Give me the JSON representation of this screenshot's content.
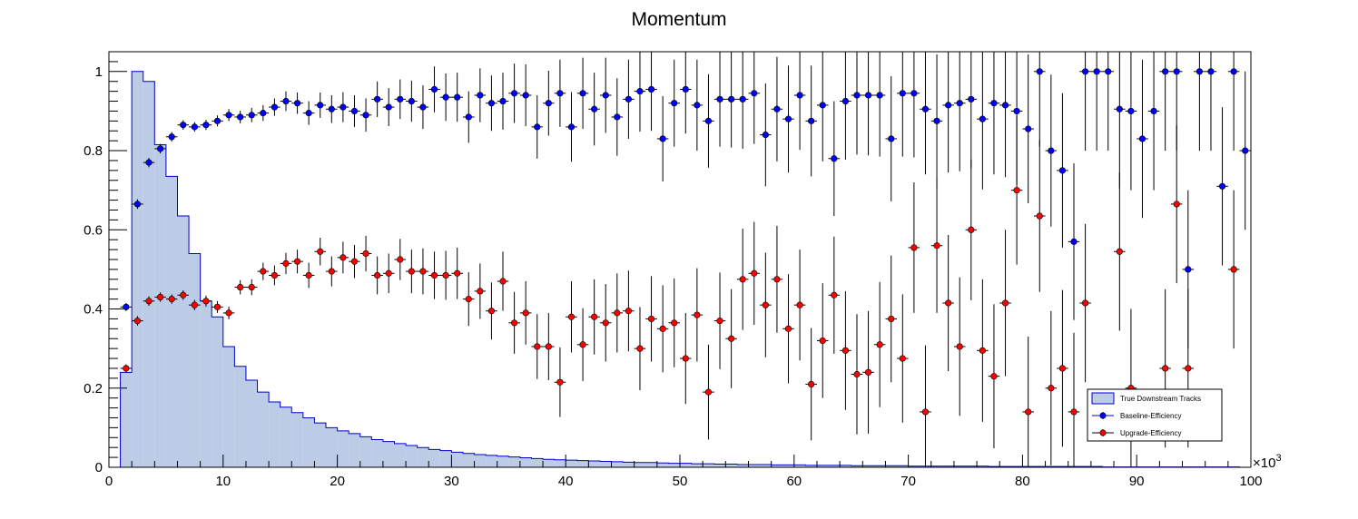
{
  "chart_data": {
    "type": "scatter",
    "title": "Momentum",
    "xlabel": "",
    "ylabel": "",
    "x_exponent_label": "×10",
    "x_exponent_power": "3",
    "xlim": [
      0,
      100
    ],
    "ylim": [
      0,
      1.05
    ],
    "x_ticks": [
      "0",
      "10",
      "20",
      "30",
      "40",
      "50",
      "60",
      "70",
      "80",
      "90",
      "100"
    ],
    "y_ticks": [
      "0",
      "0.2",
      "0.4",
      "0.6",
      "0.8",
      "1"
    ],
    "legend_position": "bottom-right",
    "colors": {
      "histogram_fill": "#bccbe6",
      "histogram_line": "#0000cc",
      "baseline": "#0000ff",
      "upgrade": "#ff0000",
      "errorbar": "#000000"
    },
    "histogram": {
      "name": "True Downstream Tracks",
      "x_start": 1,
      "bin_width": 1,
      "values": [
        0.24,
        1.0,
        0.975,
        0.815,
        0.735,
        0.635,
        0.54,
        0.42,
        0.38,
        0.305,
        0.255,
        0.22,
        0.19,
        0.165,
        0.152,
        0.138,
        0.125,
        0.112,
        0.1,
        0.092,
        0.085,
        0.077,
        0.07,
        0.065,
        0.06,
        0.055,
        0.05,
        0.045,
        0.042,
        0.038,
        0.035,
        0.032,
        0.03,
        0.028,
        0.026,
        0.024,
        0.022,
        0.02,
        0.019,
        0.018,
        0.017,
        0.016,
        0.015,
        0.014,
        0.013,
        0.012,
        0.012,
        0.011,
        0.01,
        0.01,
        0.009,
        0.009,
        0.008,
        0.008,
        0.007,
        0.007,
        0.007,
        0.006,
        0.006,
        0.006,
        0.005,
        0.005,
        0.005,
        0.005,
        0.004,
        0.004,
        0.004,
        0.004,
        0.004,
        0.003,
        0.003,
        0.003,
        0.003,
        0.003,
        0.003,
        0.003,
        0.002,
        0.002,
        0.002,
        0.002,
        0.002,
        0.002,
        0.002,
        0.002,
        0.002,
        0.002,
        0.001,
        0.001,
        0.001,
        0.001,
        0.001,
        0.001,
        0.001,
        0.001,
        0.001,
        0.001,
        0.001,
        0.001
      ]
    },
    "series": [
      {
        "name": "Baseline-Efficiency",
        "x": [
          1.5,
          2.5,
          3.5,
          4.5,
          5.5,
          6.5,
          7.5,
          8.5,
          9.5,
          10.5,
          11.5,
          12.5,
          13.5,
          14.5,
          15.5,
          16.5,
          17.5,
          18.5,
          19.5,
          20.5,
          21.5,
          22.5,
          23.5,
          24.5,
          25.5,
          26.5,
          27.5,
          28.5,
          29.5,
          30.5,
          31.5,
          32.5,
          33.5,
          34.5,
          35.5,
          36.5,
          37.5,
          38.5,
          39.5,
          40.5,
          41.5,
          42.5,
          43.5,
          44.5,
          45.5,
          46.5,
          47.5,
          48.5,
          49.5,
          50.5,
          51.5,
          52.5,
          53.5,
          54.5,
          55.5,
          56.5,
          57.5,
          58.5,
          59.5,
          60.5,
          61.5,
          62.5,
          63.5,
          64.5,
          65.5,
          66.5,
          67.5,
          68.5,
          69.5,
          70.5,
          71.5,
          72.5,
          73.5,
          74.5,
          75.5,
          76.5,
          77.5,
          78.5,
          79.5,
          80.5,
          81.5,
          82.5,
          83.5,
          84.5,
          85.5,
          86.5,
          87.5,
          88.5,
          89.5,
          90.5,
          91.5,
          92.5,
          93.5,
          94.5,
          95.5,
          96.5,
          97.5,
          98.5,
          99.5
        ],
        "y": [
          0.405,
          0.665,
          0.77,
          0.805,
          0.835,
          0.865,
          0.86,
          0.865,
          0.875,
          0.89,
          0.885,
          0.89,
          0.895,
          0.91,
          0.925,
          0.92,
          0.895,
          0.915,
          0.905,
          0.91,
          0.9,
          0.89,
          0.93,
          0.91,
          0.93,
          0.925,
          0.91,
          0.955,
          0.935,
          0.935,
          0.885,
          0.94,
          0.92,
          0.925,
          0.945,
          0.94,
          0.86,
          0.92,
          0.945,
          0.86,
          0.945,
          0.905,
          0.94,
          0.885,
          0.93,
          0.95,
          0.955,
          0.83,
          0.92,
          0.955,
          0.915,
          0.875,
          0.93,
          0.93,
          0.93,
          0.945,
          0.84,
          0.905,
          0.88,
          0.94,
          0.875,
          0.915,
          0.78,
          0.925,
          0.94,
          0.94,
          0.94,
          0.83,
          0.945,
          0.945,
          0.905,
          0.875,
          0.915,
          0.92,
          0.93,
          0.88,
          0.92,
          0.915,
          0.9,
          0.855,
          1.0,
          0.8,
          0.75,
          0.57,
          1.0,
          1.0,
          1.0,
          0.905,
          0.9,
          0.83,
          0.9,
          1.0,
          1.0,
          0.5,
          1.0,
          1.0,
          0.71,
          1.0,
          0.8
        ],
        "err_up": [
          0.01,
          0.012,
          0.012,
          0.012,
          0.012,
          0.012,
          0.012,
          0.013,
          0.014,
          0.015,
          0.016,
          0.018,
          0.02,
          0.022,
          0.025,
          0.027,
          0.03,
          0.032,
          0.035,
          0.038,
          0.04,
          0.042,
          0.045,
          0.048,
          0.05,
          0.052,
          0.055,
          0.058,
          0.06,
          0.062,
          0.065,
          0.068,
          0.07,
          0.072,
          0.075,
          0.078,
          0.08,
          0.082,
          0.085,
          0.088,
          0.09,
          0.092,
          0.095,
          0.098,
          0.1,
          0.102,
          0.105,
          0.108,
          0.11,
          0.112,
          0.115,
          0.118,
          0.12,
          0.122,
          0.125,
          0.128,
          0.13,
          0.132,
          0.135,
          0.138,
          0.14,
          0.142,
          0.145,
          0.148,
          0.15,
          0.152,
          0.155,
          0.158,
          0.16,
          0.162,
          0.165,
          0.168,
          0.17,
          0.172,
          0.175,
          0.178,
          0.18,
          0.182,
          0.185,
          0.188,
          0.19,
          0.192,
          0.195,
          0.198,
          0.2,
          0.2,
          0.2,
          0.2,
          0.2,
          0.2,
          0.2,
          0.2,
          0.2,
          0.2,
          0.2,
          0.2,
          0.2,
          0.2,
          0.2
        ],
        "err_down": [
          0.01,
          0.012,
          0.012,
          0.012,
          0.012,
          0.012,
          0.012,
          0.013,
          0.014,
          0.015,
          0.016,
          0.018,
          0.02,
          0.022,
          0.025,
          0.027,
          0.03,
          0.032,
          0.035,
          0.038,
          0.04,
          0.042,
          0.045,
          0.048,
          0.05,
          0.052,
          0.055,
          0.058,
          0.06,
          0.062,
          0.065,
          0.068,
          0.07,
          0.072,
          0.075,
          0.078,
          0.08,
          0.082,
          0.085,
          0.088,
          0.09,
          0.092,
          0.095,
          0.098,
          0.1,
          0.102,
          0.105,
          0.108,
          0.11,
          0.112,
          0.115,
          0.118,
          0.12,
          0.122,
          0.125,
          0.128,
          0.13,
          0.132,
          0.135,
          0.138,
          0.14,
          0.142,
          0.145,
          0.148,
          0.15,
          0.152,
          0.155,
          0.158,
          0.16,
          0.162,
          0.165,
          0.168,
          0.17,
          0.172,
          0.175,
          0.178,
          0.18,
          0.182,
          0.185,
          0.188,
          0.19,
          0.192,
          0.195,
          0.198,
          0.2,
          0.2,
          0.2,
          0.2,
          0.2,
          0.2,
          0.2,
          0.2,
          0.2,
          0.2,
          0.2,
          0.2,
          0.2,
          0.2,
          0.2
        ]
      },
      {
        "name": "Upgrade-Efficiency",
        "x": [
          1.5,
          2.5,
          3.5,
          4.5,
          5.5,
          6.5,
          7.5,
          8.5,
          9.5,
          10.5,
          11.5,
          12.5,
          13.5,
          14.5,
          15.5,
          16.5,
          17.5,
          18.5,
          19.5,
          20.5,
          21.5,
          22.5,
          23.5,
          24.5,
          25.5,
          26.5,
          27.5,
          28.5,
          29.5,
          30.5,
          31.5,
          32.5,
          33.5,
          34.5,
          35.5,
          36.5,
          37.5,
          38.5,
          39.5,
          40.5,
          41.5,
          42.5,
          43.5,
          44.5,
          45.5,
          46.5,
          47.5,
          48.5,
          49.5,
          50.5,
          51.5,
          52.5,
          53.5,
          54.5,
          55.5,
          56.5,
          57.5,
          58.5,
          59.5,
          60.5,
          61.5,
          62.5,
          63.5,
          64.5,
          65.5,
          66.5,
          67.5,
          68.5,
          69.5,
          70.5,
          71.5,
          72.5,
          73.5,
          74.5,
          75.5,
          76.5,
          77.5,
          78.5,
          79.5,
          80.5,
          81.5,
          82.5,
          83.5,
          84.5,
          85.5,
          88.5,
          89.5,
          92.5,
          93.5,
          94.5,
          98.5
        ],
        "y": [
          0.25,
          0.37,
          0.42,
          0.43,
          0.425,
          0.435,
          0.41,
          0.42,
          0.405,
          0.39,
          0.455,
          0.455,
          0.495,
          0.485,
          0.515,
          0.52,
          0.485,
          0.545,
          0.495,
          0.53,
          0.52,
          0.54,
          0.485,
          0.49,
          0.525,
          0.495,
          0.495,
          0.485,
          0.485,
          0.49,
          0.425,
          0.445,
          0.395,
          0.47,
          0.365,
          0.39,
          0.305,
          0.305,
          0.215,
          0.38,
          0.31,
          0.38,
          0.365,
          0.39,
          0.395,
          0.3,
          0.375,
          0.35,
          0.365,
          0.275,
          0.385,
          0.19,
          0.37,
          0.325,
          0.475,
          0.49,
          0.41,
          0.475,
          0.35,
          0.41,
          0.21,
          0.32,
          0.435,
          0.295,
          0.235,
          0.24,
          0.31,
          0.375,
          0.275,
          0.555,
          0.14,
          0.56,
          0.415,
          0.305,
          0.6,
          0.295,
          0.23,
          0.415,
          0.7,
          0.14,
          0.635,
          0.2,
          0.25,
          0.14,
          0.415,
          0.545,
          0.2,
          0.25,
          0.665,
          0.25,
          0.5
        ],
        "err_up": [
          0.01,
          0.012,
          0.012,
          0.012,
          0.012,
          0.012,
          0.013,
          0.014,
          0.015,
          0.016,
          0.018,
          0.02,
          0.022,
          0.025,
          0.027,
          0.03,
          0.032,
          0.035,
          0.038,
          0.04,
          0.042,
          0.045,
          0.048,
          0.05,
          0.052,
          0.055,
          0.058,
          0.06,
          0.062,
          0.065,
          0.068,
          0.07,
          0.072,
          0.075,
          0.078,
          0.08,
          0.082,
          0.085,
          0.088,
          0.09,
          0.092,
          0.095,
          0.098,
          0.1,
          0.102,
          0.105,
          0.108,
          0.11,
          0.112,
          0.115,
          0.118,
          0.12,
          0.122,
          0.125,
          0.128,
          0.13,
          0.132,
          0.135,
          0.138,
          0.14,
          0.142,
          0.145,
          0.148,
          0.15,
          0.152,
          0.155,
          0.158,
          0.16,
          0.162,
          0.165,
          0.168,
          0.17,
          0.172,
          0.175,
          0.178,
          0.18,
          0.182,
          0.185,
          0.188,
          0.19,
          0.192,
          0.195,
          0.198,
          0.2,
          0.2,
          0.2,
          0.2,
          0.2,
          0.2,
          0.2,
          0.2
        ],
        "err_down": [
          0.01,
          0.012,
          0.012,
          0.012,
          0.012,
          0.012,
          0.013,
          0.014,
          0.015,
          0.016,
          0.018,
          0.02,
          0.022,
          0.025,
          0.027,
          0.03,
          0.032,
          0.035,
          0.038,
          0.04,
          0.042,
          0.045,
          0.048,
          0.05,
          0.052,
          0.055,
          0.058,
          0.06,
          0.062,
          0.065,
          0.068,
          0.07,
          0.072,
          0.075,
          0.078,
          0.08,
          0.082,
          0.085,
          0.088,
          0.09,
          0.092,
          0.095,
          0.098,
          0.1,
          0.102,
          0.105,
          0.108,
          0.11,
          0.112,
          0.115,
          0.118,
          0.12,
          0.122,
          0.125,
          0.128,
          0.13,
          0.132,
          0.135,
          0.138,
          0.14,
          0.142,
          0.145,
          0.148,
          0.15,
          0.152,
          0.155,
          0.158,
          0.16,
          0.162,
          0.165,
          0.168,
          0.17,
          0.172,
          0.175,
          0.178,
          0.18,
          0.182,
          0.185,
          0.188,
          0.19,
          0.192,
          0.195,
          0.198,
          0.2,
          0.2,
          0.2,
          0.2,
          0.2,
          0.2,
          0.2,
          0.2
        ]
      }
    ]
  }
}
